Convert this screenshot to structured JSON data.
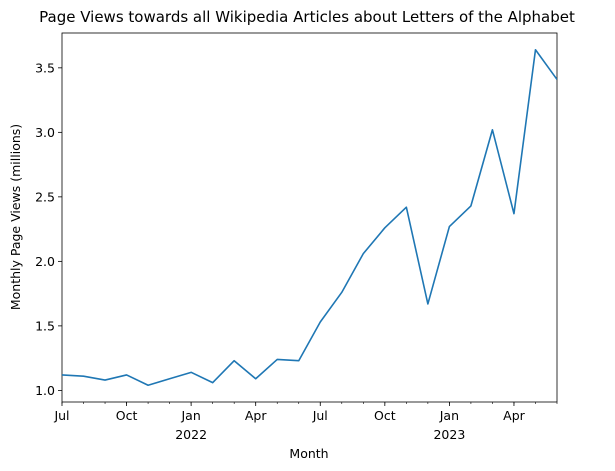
{
  "chart_data": {
    "type": "line",
    "title": "Page Views towards all Wikipedia Articles about Letters of the Alphabet",
    "xlabel": "Month",
    "ylabel": "Monthly Page Views (millions)",
    "x": [
      "2021-07",
      "2021-08",
      "2021-09",
      "2021-10",
      "2021-11",
      "2021-12",
      "2022-01",
      "2022-02",
      "2022-03",
      "2022-04",
      "2022-05",
      "2022-06",
      "2022-07",
      "2022-08",
      "2022-09",
      "2022-10",
      "2022-11",
      "2022-12",
      "2023-01",
      "2023-02",
      "2023-03",
      "2023-04",
      "2023-05",
      "2023-06"
    ],
    "series": [
      {
        "values": [
          1.12,
          1.11,
          1.08,
          1.12,
          1.04,
          1.09,
          1.14,
          1.06,
          1.23,
          1.09,
          1.24,
          1.23,
          1.53,
          1.76,
          2.06,
          2.26,
          2.42,
          1.67,
          2.27,
          2.43,
          3.02,
          2.37,
          3.64,
          3.41
        ],
        "color": "#1f77b4"
      }
    ],
    "xlim": [
      "2021-07",
      "2023-06"
    ],
    "ylim": [
      0.91,
      3.77
    ],
    "yticks": [
      "1.0",
      "1.5",
      "2.0",
      "2.5",
      "3.0",
      "3.5"
    ],
    "yticks_values": [
      1.0,
      1.5,
      2.0,
      2.5,
      3.0,
      3.5
    ],
    "xticks": [
      {
        "label": "Jul",
        "sub": ""
      },
      {
        "label": "Oct",
        "sub": ""
      },
      {
        "label": "Jan",
        "sub": "2022"
      },
      {
        "label": "Apr",
        "sub": ""
      },
      {
        "label": "Jul",
        "sub": ""
      },
      {
        "label": "Oct",
        "sub": ""
      },
      {
        "label": "Jan",
        "sub": "2023"
      },
      {
        "label": "Apr",
        "sub": ""
      }
    ],
    "xticks_months": [
      "2021-07",
      "2021-10",
      "2022-01",
      "2022-04",
      "2022-07",
      "2022-10",
      "2023-01",
      "2023-04"
    ],
    "grid": false,
    "legend": "none"
  }
}
